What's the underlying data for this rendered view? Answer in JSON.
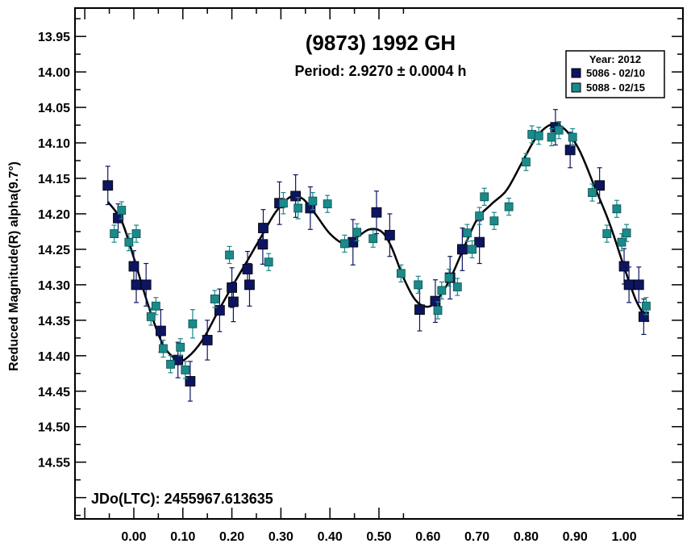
{
  "chart_data": {
    "type": "scatter",
    "title": "(9873) 1992 GH",
    "subtitle": "Period: 2.9270 ± 0.0004 h",
    "ylabel": "Reduced Magnitude(R) alpha(9.7°)",
    "xlabel": "",
    "annotation": "JDo(LTC): 2455967.613635",
    "xlim": [
      -0.12,
      1.12
    ],
    "ylim": [
      13.91,
      14.63
    ],
    "y_inverted": true,
    "xticks": [
      0.0,
      0.1,
      0.2,
      0.3,
      0.4,
      0.5,
      0.6,
      0.7,
      0.8,
      0.9,
      1.0
    ],
    "xtick_labels": [
      "0.00",
      "0.10",
      "0.20",
      "0.30",
      "0.40",
      "0.50",
      "0.60",
      "0.70",
      "0.80",
      "0.90",
      "1.00"
    ],
    "yticks": [
      13.95,
      14.0,
      14.05,
      14.1,
      14.15,
      14.2,
      14.25,
      14.3,
      14.35,
      14.4,
      14.45,
      14.5,
      14.55
    ],
    "ytick_labels": [
      "13.95",
      "14.00",
      "14.05",
      "14.10",
      "14.15",
      "14.20",
      "14.25",
      "14.30",
      "14.35",
      "14.40",
      "14.45",
      "14.50",
      "14.55"
    ],
    "legend": {
      "title": "Year: 2012",
      "position": "top-right",
      "entries": [
        {
          "label": "5086 - 02/10",
          "color": "#0d1560"
        },
        {
          "label": "5088 - 02/15",
          "color": "#1a8a8a"
        }
      ]
    },
    "series": [
      {
        "name": "5086 - 02/10",
        "color": "#0d1560",
        "points": [
          [
            -0.053,
            14.16,
            0.027
          ],
          [
            -0.032,
            14.206,
            0.02
          ],
          [
            0.0,
            14.274,
            0.022
          ],
          [
            0.005,
            14.3,
            0.025
          ],
          [
            0.025,
            14.3,
            0.03
          ],
          [
            0.055,
            14.365,
            0.03
          ],
          [
            0.09,
            14.406,
            0.025
          ],
          [
            0.115,
            14.436,
            0.028
          ],
          [
            0.15,
            14.378,
            0.028
          ],
          [
            0.175,
            14.336,
            0.03
          ],
          [
            0.2,
            14.304,
            0.028
          ],
          [
            0.203,
            14.324,
            0.028
          ],
          [
            0.232,
            14.278,
            0.025
          ],
          [
            0.236,
            14.3,
            0.03
          ],
          [
            0.263,
            14.243,
            0.028
          ],
          [
            0.264,
            14.22,
            0.026
          ],
          [
            0.297,
            14.185,
            0.03
          ],
          [
            0.33,
            14.175,
            0.03
          ],
          [
            0.36,
            14.192,
            0.03
          ],
          [
            0.447,
            14.24,
            0.032
          ],
          [
            0.495,
            14.198,
            0.03
          ],
          [
            0.522,
            14.23,
            0.03
          ],
          [
            0.583,
            14.335,
            0.03
          ],
          [
            0.615,
            14.323,
            0.03
          ],
          [
            0.645,
            14.29,
            0.03
          ],
          [
            0.67,
            14.25,
            0.03
          ],
          [
            0.705,
            14.24,
            0.03
          ],
          [
            0.86,
            14.078,
            0.025
          ],
          [
            0.89,
            14.11,
            0.025
          ],
          [
            0.95,
            14.16,
            0.025
          ],
          [
            1.0,
            14.274,
            0.025
          ],
          [
            1.01,
            14.3,
            0.025
          ],
          [
            1.03,
            14.3,
            0.025
          ],
          [
            1.04,
            14.345,
            0.025
          ]
        ]
      },
      {
        "name": "5088 - 02/15",
        "color": "#1a8a8a",
        "points": [
          [
            -0.04,
            14.228,
            0.012
          ],
          [
            -0.025,
            14.195,
            0.012
          ],
          [
            -0.01,
            14.24,
            0.012
          ],
          [
            0.005,
            14.228,
            0.012
          ],
          [
            0.035,
            14.345,
            0.012
          ],
          [
            0.045,
            14.33,
            0.012
          ],
          [
            0.06,
            14.39,
            0.012
          ],
          [
            0.075,
            14.412,
            0.012
          ],
          [
            0.095,
            14.388,
            0.012
          ],
          [
            0.105,
            14.42,
            0.012
          ],
          [
            0.12,
            14.355,
            0.02
          ],
          [
            0.165,
            14.32,
            0.012
          ],
          [
            0.195,
            14.258,
            0.012
          ],
          [
            0.275,
            14.268,
            0.012
          ],
          [
            0.305,
            14.185,
            0.015
          ],
          [
            0.335,
            14.192,
            0.015
          ],
          [
            0.365,
            14.182,
            0.012
          ],
          [
            0.395,
            14.186,
            0.012
          ],
          [
            0.43,
            14.242,
            0.012
          ],
          [
            0.455,
            14.226,
            0.012
          ],
          [
            0.488,
            14.235,
            0.012
          ],
          [
            0.545,
            14.284,
            0.012
          ],
          [
            0.58,
            14.3,
            0.012
          ],
          [
            0.62,
            14.336,
            0.012
          ],
          [
            0.628,
            14.308,
            0.012
          ],
          [
            0.643,
            14.29,
            0.012
          ],
          [
            0.66,
            14.303,
            0.012
          ],
          [
            0.68,
            14.227,
            0.012
          ],
          [
            0.69,
            14.25,
            0.012
          ],
          [
            0.705,
            14.203,
            0.012
          ],
          [
            0.715,
            14.176,
            0.012
          ],
          [
            0.735,
            14.21,
            0.012
          ],
          [
            0.765,
            14.19,
            0.012
          ],
          [
            0.8,
            14.127,
            0.012
          ],
          [
            0.812,
            14.088,
            0.012
          ],
          [
            0.826,
            14.09,
            0.012
          ],
          [
            0.852,
            14.092,
            0.012
          ],
          [
            0.867,
            14.082,
            0.012
          ],
          [
            0.895,
            14.092,
            0.012
          ],
          [
            0.935,
            14.17,
            0.012
          ],
          [
            0.965,
            14.228,
            0.012
          ],
          [
            0.985,
            14.193,
            0.012
          ],
          [
            0.995,
            14.24,
            0.012
          ],
          [
            1.005,
            14.227,
            0.012
          ],
          [
            1.045,
            14.33,
            0.012
          ]
        ]
      }
    ],
    "fit_curve": {
      "points": [
        [
          -0.053,
          14.183
        ],
        [
          -0.025,
          14.21
        ],
        [
          0.0,
          14.262
        ],
        [
          0.03,
          14.33
        ],
        [
          0.06,
          14.385
        ],
        [
          0.09,
          14.406
        ],
        [
          0.11,
          14.402
        ],
        [
          0.14,
          14.378
        ],
        [
          0.17,
          14.34
        ],
        [
          0.2,
          14.303
        ],
        [
          0.23,
          14.268
        ],
        [
          0.26,
          14.232
        ],
        [
          0.29,
          14.197
        ],
        [
          0.32,
          14.176
        ],
        [
          0.345,
          14.179
        ],
        [
          0.37,
          14.2
        ],
        [
          0.4,
          14.228
        ],
        [
          0.43,
          14.242
        ],
        [
          0.455,
          14.233
        ],
        [
          0.48,
          14.222
        ],
        [
          0.505,
          14.225
        ],
        [
          0.525,
          14.246
        ],
        [
          0.55,
          14.29
        ],
        [
          0.575,
          14.322
        ],
        [
          0.6,
          14.331
        ],
        [
          0.62,
          14.32
        ],
        [
          0.645,
          14.292
        ],
        [
          0.67,
          14.253
        ],
        [
          0.7,
          14.208
        ],
        [
          0.73,
          14.186
        ],
        [
          0.76,
          14.167
        ],
        [
          0.79,
          14.13
        ],
        [
          0.82,
          14.093
        ],
        [
          0.845,
          14.076
        ],
        [
          0.865,
          14.075
        ],
        [
          0.885,
          14.085
        ],
        [
          0.91,
          14.112
        ],
        [
          0.94,
          14.162
        ],
        [
          0.97,
          14.213
        ],
        [
          1.0,
          14.275
        ],
        [
          1.025,
          14.323
        ],
        [
          1.05,
          14.352
        ]
      ]
    }
  }
}
